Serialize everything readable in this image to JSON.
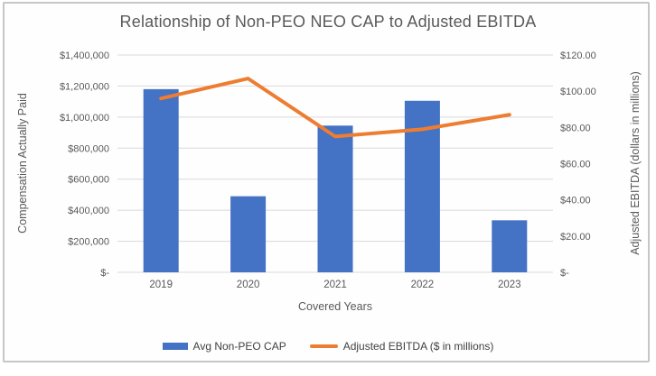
{
  "chart_data": {
    "type": "combo-bar-line",
    "title": "Relationship of Non-PEO NEO CAP to Adjusted EBITDA",
    "categories": [
      "2019",
      "2020",
      "2021",
      "2022",
      "2023"
    ],
    "series": [
      {
        "name": "Avg Non-PEO CAP",
        "type": "bar",
        "axis": "left",
        "color": "#4472C4",
        "values": [
          1180000,
          490000,
          945000,
          1105000,
          335000
        ]
      },
      {
        "name": "Adjusted EBITDA ($ in millions)",
        "type": "line",
        "axis": "right",
        "color": "#ED7D31",
        "values": [
          96,
          107,
          75,
          79,
          87
        ]
      }
    ],
    "xlabel": "Covered Years",
    "left_axis": {
      "title": "Compensation Actually Paid",
      "min": 0,
      "max": 1400000,
      "step": 200000,
      "tick_labels": [
        "$-",
        "$200,000",
        "$400,000",
        "$600,000",
        "$800,000",
        "$1,000,000",
        "$1,200,000",
        "$1,400,000"
      ]
    },
    "right_axis": {
      "title": "Adjusted EBITDA (dollars in millions)",
      "min": 0,
      "max": 120,
      "step": 20,
      "tick_labels": [
        "$-",
        "$20.00",
        "$40.00",
        "$60.00",
        "$80.00",
        "$100.00",
        "$120.00"
      ]
    },
    "grid": true,
    "legend_position": "bottom",
    "colors": {
      "grid": "#D9D9D9",
      "axis_text": "#595959",
      "legend_text": "#404040",
      "frame_border": "#C6C6C6"
    }
  }
}
